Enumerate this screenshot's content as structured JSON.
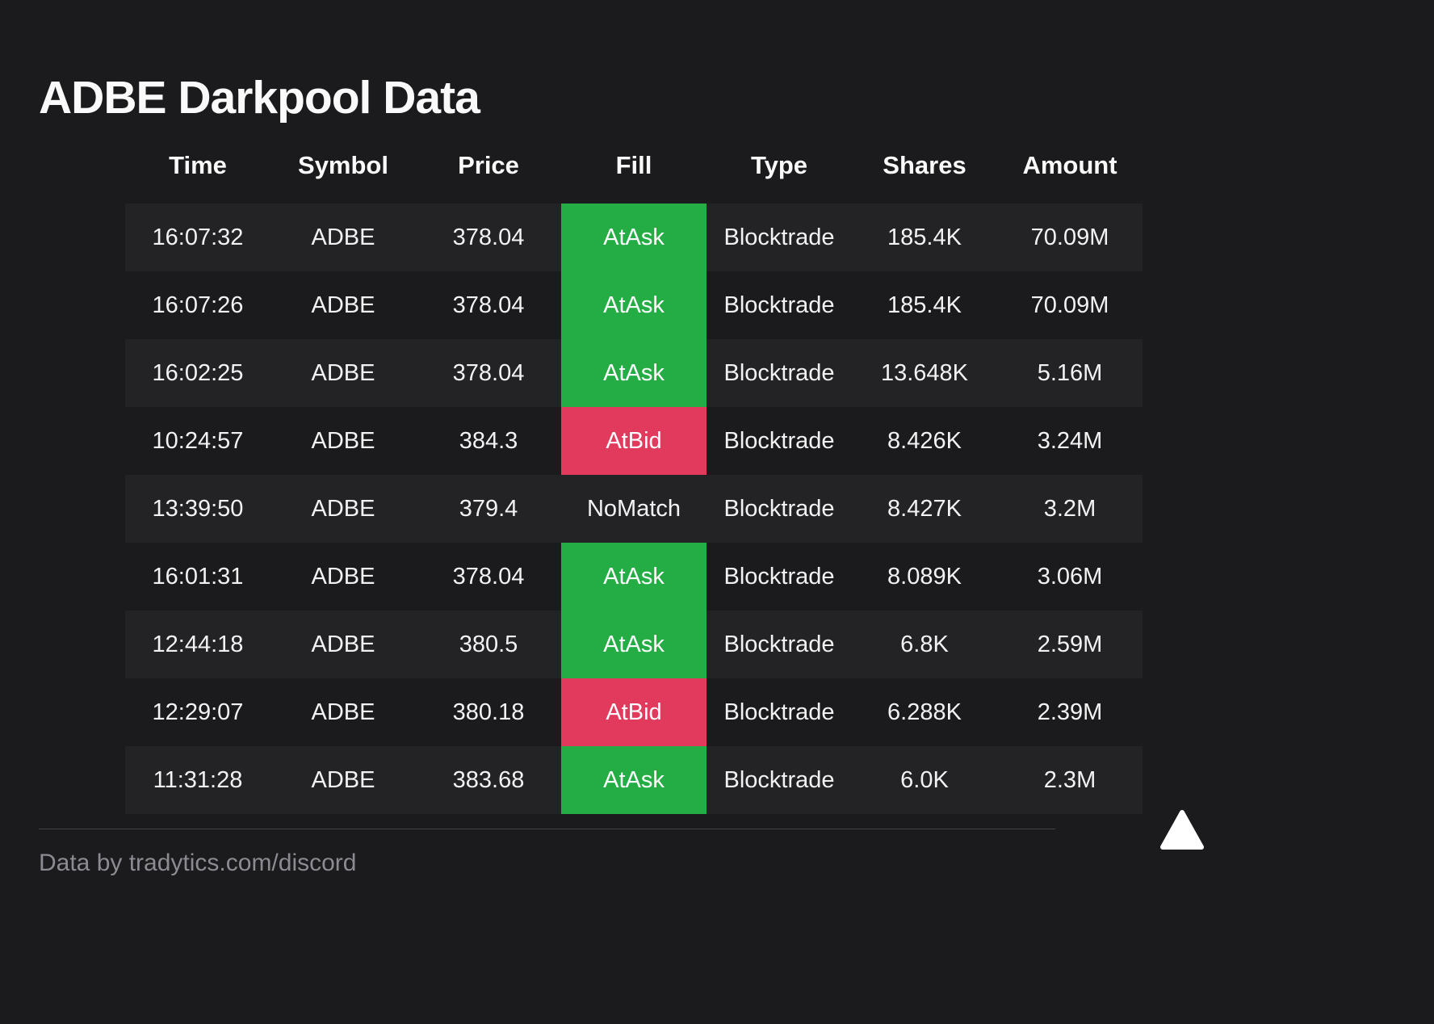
{
  "chart_data": {
    "type": "table",
    "title": "ADBE Darkpool Data",
    "columns": [
      "Time",
      "Symbol",
      "Price",
      "Fill",
      "Type",
      "Shares",
      "Amount"
    ],
    "rows": [
      [
        "16:07:32",
        "ADBE",
        "378.04",
        "AtAsk",
        "Blocktrade",
        "185.4K",
        "70.09M"
      ],
      [
        "16:07:26",
        "ADBE",
        "378.04",
        "AtAsk",
        "Blocktrade",
        "185.4K",
        "70.09M"
      ],
      [
        "16:02:25",
        "ADBE",
        "378.04",
        "AtAsk",
        "Blocktrade",
        "13.648K",
        "5.16M"
      ],
      [
        "10:24:57",
        "ADBE",
        "384.3",
        "AtBid",
        "Blocktrade",
        "8.426K",
        "3.24M"
      ],
      [
        "13:39:50",
        "ADBE",
        "379.4",
        "NoMatch",
        "Blocktrade",
        "8.427K",
        "3.2M"
      ],
      [
        "16:01:31",
        "ADBE",
        "378.04",
        "AtAsk",
        "Blocktrade",
        "8.089K",
        "3.06M"
      ],
      [
        "12:44:18",
        "ADBE",
        "380.5",
        "AtAsk",
        "Blocktrade",
        "6.8K",
        "2.59M"
      ],
      [
        "12:29:07",
        "ADBE",
        "380.18",
        "AtBid",
        "Blocktrade",
        "6.288K",
        "2.39M"
      ],
      [
        "11:31:28",
        "ADBE",
        "383.68",
        "AtAsk",
        "Blocktrade",
        "6.0K",
        "2.3M"
      ]
    ],
    "fill_legend": {
      "AtAsk": "green",
      "AtBid": "red",
      "NoMatch": "none"
    },
    "layout_hints": {
      "striped_rows": "odd rows lighter",
      "fill_column_colored": true
    }
  },
  "colors": {
    "background": "#1b1b1d",
    "stripe": "#232326",
    "at_ask_green": "#23ad44",
    "at_bid_red": "#e23a5d",
    "text": "#f2f2f3",
    "muted_text": "#8b8b91"
  },
  "footer": {
    "credit": "Data by tradytics.com/discord"
  },
  "logo": {
    "name": "tradytics-triangle-logo",
    "color": "#ffffff"
  }
}
